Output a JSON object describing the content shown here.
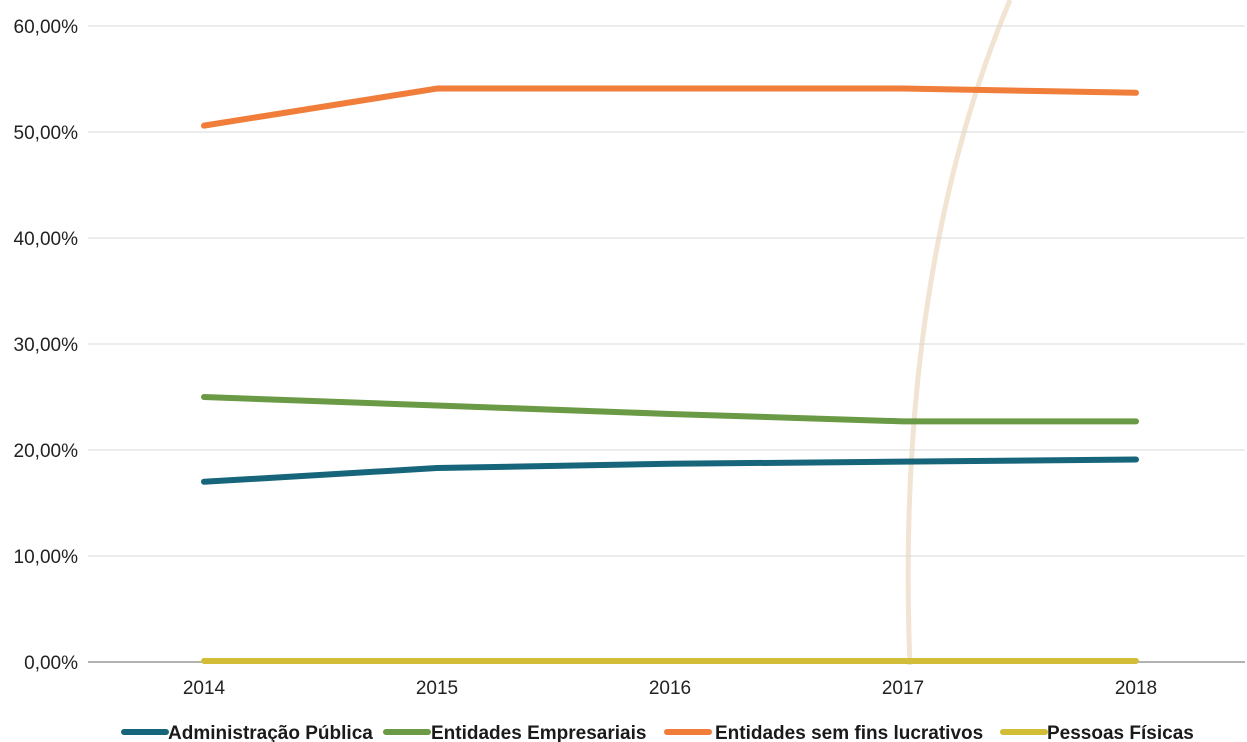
{
  "chart_data": {
    "type": "line",
    "title": "",
    "xlabel": "",
    "ylabel": "",
    "x": [
      "2014",
      "2015",
      "2016",
      "2017",
      "2018"
    ],
    "ylim": [
      0,
      60
    ],
    "yticks": [
      0,
      10,
      20,
      30,
      40,
      50,
      60
    ],
    "ytick_labels": [
      "0,00%",
      "10,00%",
      "20,00%",
      "30,00%",
      "40,00%",
      "50,00%",
      "60,00%"
    ],
    "grid": true,
    "legend": "bottom",
    "series": [
      {
        "name": "Administração Pública",
        "color": "#17657a",
        "values": [
          17.0,
          18.3,
          18.7,
          18.9,
          19.1
        ]
      },
      {
        "name": "Entidades Empresariais",
        "color": "#6a9a45",
        "values": [
          25.0,
          24.2,
          23.4,
          22.7,
          22.7
        ]
      },
      {
        "name": "Entidades sem fins lucrativos",
        "color": "#f07d3a",
        "values": [
          50.6,
          54.1,
          54.1,
          54.1,
          53.7
        ]
      },
      {
        "name": "Pessoas Físicas",
        "color": "#d1bd38",
        "values": [
          0.1,
          0.1,
          0.1,
          0.1,
          0.1
        ]
      }
    ]
  }
}
